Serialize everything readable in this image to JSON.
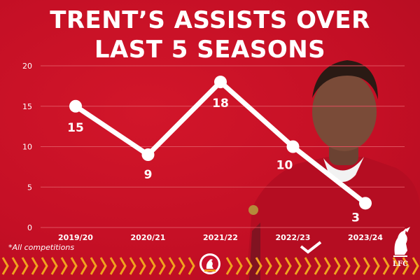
{
  "title_lines": [
    "TRENT’S ASSISTS OVER",
    "LAST 5 SEASONS"
  ],
  "footnote": "*All competitions",
  "colors": {
    "background": "#c8102e",
    "line": "#ffffff",
    "grid": "#e0525f",
    "chevron": "#f0a21e"
  },
  "chart_data": {
    "type": "line",
    "title": "TRENT’S ASSISTS OVER LAST 5 SEASONS",
    "xlabel": "",
    "ylabel": "",
    "categories": [
      "2019/20",
      "2020/21",
      "2021/22",
      "2022/23",
      "2023/24"
    ],
    "series": [
      {
        "values": [
          15,
          9,
          18,
          10,
          3
        ]
      }
    ],
    "data_labels": [
      "15",
      "9",
      "18",
      "10",
      "3"
    ],
    "yticks": [
      "0",
      "5",
      "10",
      "15",
      "20"
    ],
    "ylim": [
      0,
      20
    ],
    "grid": true,
    "legend": "none"
  },
  "crest": {
    "icon": "liverpool-liver-bird-crest-icon",
    "text": "LFC"
  },
  "badge": {
    "icon": "liver-bird-badge-icon"
  }
}
